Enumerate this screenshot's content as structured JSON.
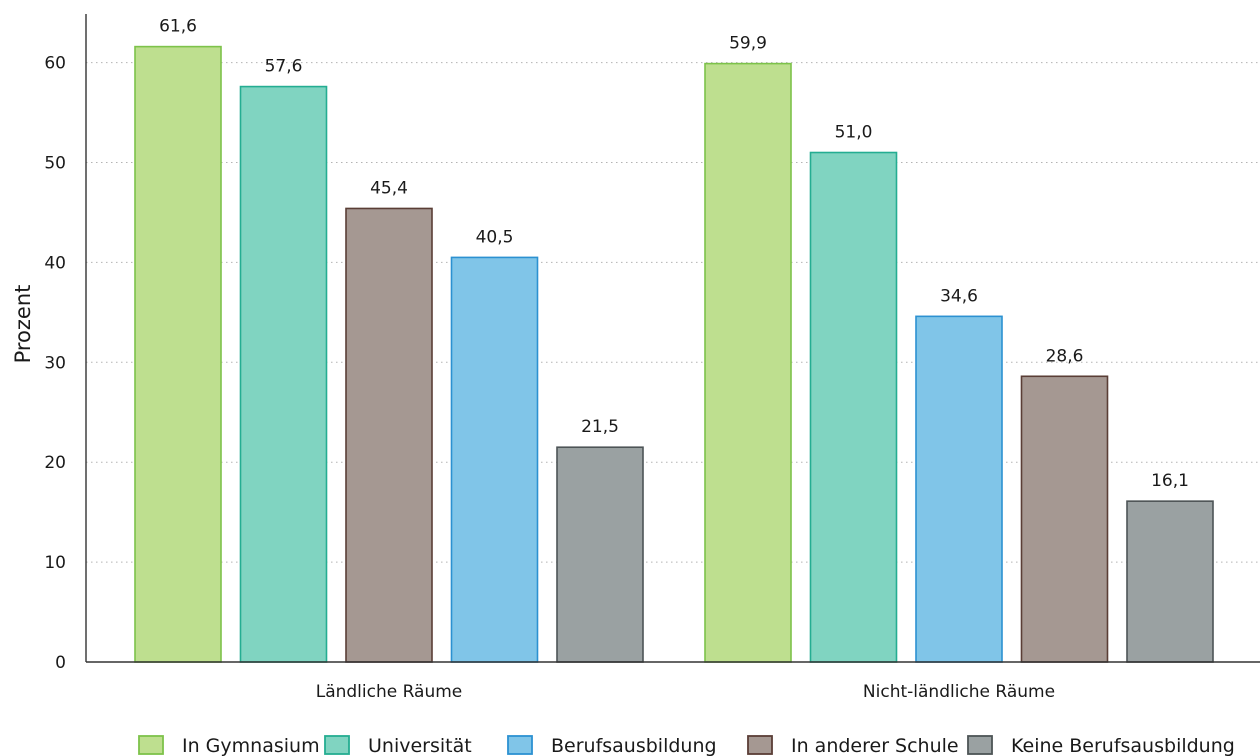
{
  "chart_data": {
    "type": "bar",
    "title": "",
    "xlabel": "",
    "ylabel": "Prozent",
    "ylim": [
      0,
      65
    ],
    "yticks": [
      0,
      10,
      20,
      30,
      40,
      50,
      60
    ],
    "grid": true,
    "legend_position": "bottom",
    "decimal_separator": ",",
    "groups": [
      {
        "label": "Ländliche Räume",
        "bars": [
          {
            "series": "In Gymnasium",
            "value": 61.6,
            "label": "61,6"
          },
          {
            "series": "Universität",
            "value": 57.6,
            "label": "57,6"
          },
          {
            "series": "In anderer Schule",
            "value": 45.4,
            "label": "45,4"
          },
          {
            "series": "Berufsausbildung",
            "value": 40.5,
            "label": "40,5"
          },
          {
            "series": "Keine Berufsausbildung",
            "value": 21.5,
            "label": "21,5"
          }
        ]
      },
      {
        "label": "Nicht-ländliche Räume",
        "bars": [
          {
            "series": "In Gymnasium",
            "value": 59.9,
            "label": "59,9"
          },
          {
            "series": "Universität",
            "value": 51.0,
            "label": "51,0"
          },
          {
            "series": "Berufsausbildung",
            "value": 34.6,
            "label": "34,6"
          },
          {
            "series": "In anderer Schule",
            "value": 28.6,
            "label": "28,6"
          },
          {
            "series": "Keine Berufsausbildung",
            "value": 16.1,
            "label": "16,1"
          }
        ]
      }
    ],
    "series": [
      {
        "name": "In Gymnasium",
        "fill": "#bedf8f",
        "stroke": "#7dc24a"
      },
      {
        "name": "Universität",
        "fill": "#80d4c1",
        "stroke": "#24ad92"
      },
      {
        "name": "Berufsausbildung",
        "fill": "#80c5e8",
        "stroke": "#2c91d1"
      },
      {
        "name": "In anderer Schule",
        "fill": "#a59892",
        "stroke": "#5a3e36"
      },
      {
        "name": "Keine Berufsausbildung",
        "fill": "#9aa1a2",
        "stroke": "#4d5456"
      }
    ]
  }
}
